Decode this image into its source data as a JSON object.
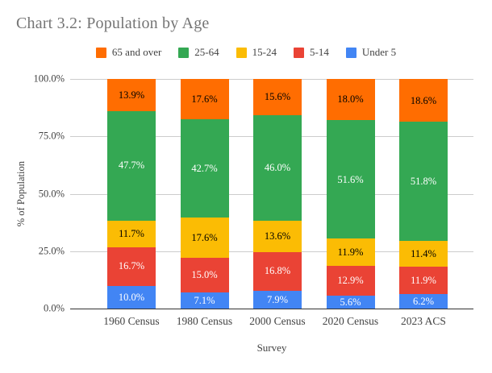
{
  "header": {
    "title": "Chart 3.2: Population by Age"
  },
  "chart_data": {
    "type": "bar",
    "stacked": true,
    "title": "Chart 3.2: Population by Age",
    "xlabel": "Survey",
    "ylabel": "% of Population",
    "ylim": [
      0,
      100
    ],
    "grid": true,
    "legend_position": "top",
    "y_ticks": [
      "100.0%",
      "75.0%",
      "50.0%",
      "25.0%",
      "0.0%"
    ],
    "categories": [
      "1960 Census",
      "1980 Census",
      "2000 Census",
      "2020 Census",
      "2023 ACS"
    ],
    "series": [
      {
        "name": "Under 5",
        "color": "#4285F4",
        "label_color": "#ffffff",
        "values": [
          10.0,
          7.1,
          7.9,
          5.6,
          6.2
        ]
      },
      {
        "name": "5-14",
        "color": "#EA4335",
        "label_color": "#ffffff",
        "values": [
          16.7,
          15.0,
          16.8,
          12.9,
          11.9
        ]
      },
      {
        "name": "15-24",
        "color": "#FBBC04",
        "label_color": "#000000",
        "values": [
          11.7,
          17.6,
          13.6,
          11.9,
          11.4
        ]
      },
      {
        "name": "25-64",
        "color": "#34A853",
        "label_color": "#ffffff",
        "values": [
          47.7,
          42.7,
          46.0,
          51.6,
          51.8
        ]
      },
      {
        "name": "65 and over",
        "color": "#FF6D01",
        "label_color": "#000000",
        "values": [
          13.9,
          17.6,
          15.6,
          18.0,
          18.6
        ]
      }
    ],
    "legend_order": [
      "65 and over",
      "25-64",
      "15-24",
      "5-14",
      "Under 5"
    ],
    "colors": {
      "grid": "#cccccc",
      "axis_line": "#333333",
      "title_text": "#757575",
      "tick_text": "#424242",
      "background": "#ffffff"
    }
  }
}
